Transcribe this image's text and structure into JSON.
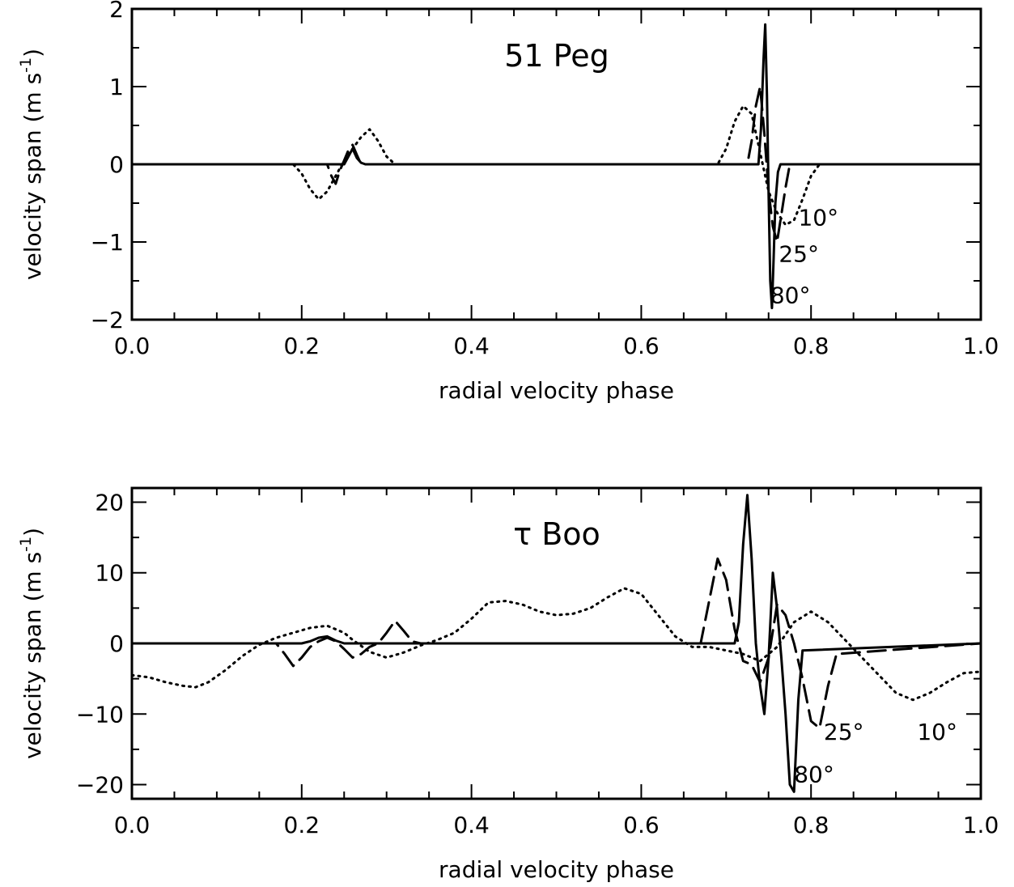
{
  "chart_data": [
    {
      "type": "line",
      "title": "51 Peg",
      "xlabel": "radial velocity phase",
      "ylabel_main": "velocity span (m s",
      "ylabel_sup": "-1",
      "ylabel_close": ")",
      "xlim": [
        0.0,
        1.0
      ],
      "ylim": [
        -2,
        2
      ],
      "xticks": [
        0.0,
        0.2,
        0.4,
        0.6,
        0.8,
        1.0
      ],
      "xtick_labels": [
        "0.0",
        "0.2",
        "0.4",
        "0.6",
        "0.8",
        "1.0"
      ],
      "yticks": [
        -2,
        -1,
        0,
        1,
        2
      ],
      "ytick_labels": [
        "−2",
        "−1",
        "0",
        "1",
        "2"
      ],
      "series": [
        {
          "style": "dotted",
          "x": [
            0.0,
            0.19,
            0.2,
            0.21,
            0.22,
            0.23,
            0.24,
            0.25,
            0.26,
            0.27,
            0.28,
            0.29,
            0.3,
            0.31,
            0.69,
            0.7,
            0.71,
            0.72,
            0.73,
            0.74,
            0.75,
            0.76,
            0.77,
            0.78,
            0.79,
            0.8,
            0.81,
            1.0
          ],
          "y": [
            0,
            0,
            -0.12,
            -0.32,
            -0.45,
            -0.35,
            -0.15,
            0.05,
            0.2,
            0.35,
            0.45,
            0.3,
            0.1,
            0,
            0,
            0.2,
            0.55,
            0.75,
            0.65,
            0.15,
            -0.35,
            -0.62,
            -0.78,
            -0.72,
            -0.45,
            -0.15,
            0,
            0
          ]
        },
        {
          "style": "dashed",
          "x": [
            0.0,
            0.23,
            0.235,
            0.24,
            0.245,
            0.25,
            0.255,
            0.26,
            0.265,
            0.27,
            0.725,
            0.73,
            0.735,
            0.74,
            0.745,
            0.75,
            0.755,
            0.76,
            0.765,
            0.77,
            0.775,
            1.0
          ],
          "y": [
            0,
            0,
            -0.15,
            -0.25,
            -0.08,
            0.05,
            0.18,
            0.25,
            0.12,
            0,
            0,
            0.3,
            0.75,
            1.0,
            0.4,
            -0.35,
            -0.8,
            -1.0,
            -0.65,
            -0.3,
            0,
            0
          ]
        },
        {
          "style": "solid",
          "x": [
            0.0,
            0.25,
            0.255,
            0.26,
            0.265,
            0.27,
            0.275,
            0.738,
            0.741,
            0.744,
            0.746,
            0.748,
            0.75,
            0.752,
            0.754,
            0.756,
            0.758,
            0.761,
            0.764,
            1.0
          ],
          "y": [
            0,
            0,
            0.1,
            0.2,
            0.08,
            0.02,
            0,
            0,
            0.45,
            1.35,
            1.8,
            0.9,
            -0.4,
            -1.5,
            -1.85,
            -1.2,
            -0.5,
            -0.1,
            0,
            0
          ]
        }
      ],
      "annotations": [
        {
          "text": "10°",
          "x": 0.785,
          "y": -0.68
        },
        {
          "text": "25°",
          "x": 0.762,
          "y": -1.15
        },
        {
          "text": "80°",
          "x": 0.752,
          "y": -1.68
        }
      ]
    },
    {
      "type": "line",
      "title": "τ Boo",
      "xlabel": "radial velocity phase",
      "ylabel_main": "velocity span (m s",
      "ylabel_sup": "-1",
      "ylabel_close": ")",
      "xlim": [
        0.0,
        1.0
      ],
      "ylim": [
        -22,
        22
      ],
      "xticks": [
        0.0,
        0.2,
        0.4,
        0.6,
        0.8,
        1.0
      ],
      "xtick_labels": [
        "0.0",
        "0.2",
        "0.4",
        "0.6",
        "0.8",
        "1.0"
      ],
      "yticks": [
        -20,
        -10,
        0,
        10,
        20
      ],
      "ytick_labels": [
        "−20",
        "−10",
        "0",
        "10",
        "20"
      ],
      "series": [
        {
          "style": "dotted",
          "x": [
            0.0,
            0.02,
            0.04,
            0.06,
            0.075,
            0.09,
            0.11,
            0.13,
            0.15,
            0.17,
            0.19,
            0.21,
            0.23,
            0.25,
            0.26,
            0.28,
            0.3,
            0.32,
            0.34,
            0.36,
            0.38,
            0.4,
            0.42,
            0.44,
            0.46,
            0.48,
            0.5,
            0.52,
            0.54,
            0.56,
            0.58,
            0.6,
            0.62,
            0.64,
            0.66,
            0.68,
            0.7,
            0.72,
            0.74,
            0.76,
            0.78,
            0.8,
            0.82,
            0.84,
            0.86,
            0.88,
            0.9,
            0.92,
            0.94,
            0.96,
            0.98,
            1.0
          ],
          "y": [
            -4.5,
            -4.8,
            -5.5,
            -6.0,
            -6.2,
            -5.5,
            -3.8,
            -1.8,
            -0.2,
            0.8,
            1.5,
            2.2,
            2.5,
            1.5,
            0.5,
            -1.2,
            -2.0,
            -1.3,
            -0.3,
            0.5,
            1.5,
            3.5,
            5.8,
            6.0,
            5.5,
            4.5,
            4.0,
            4.2,
            5.0,
            6.5,
            7.8,
            7.0,
            4.0,
            1.0,
            -0.5,
            -0.5,
            -1.0,
            -1.5,
            -2.5,
            -0.5,
            3.0,
            4.5,
            3.0,
            0.5,
            -2.0,
            -4.5,
            -7.0,
            -8.0,
            -7.0,
            -5.5,
            -4.2,
            -4.0
          ]
        },
        {
          "style": "dashed",
          "x": [
            0.0,
            0.17,
            0.18,
            0.19,
            0.2,
            0.21,
            0.22,
            0.23,
            0.24,
            0.25,
            0.26,
            0.27,
            0.28,
            0.29,
            0.3,
            0.31,
            0.32,
            0.33,
            0.34,
            0.67,
            0.68,
            0.69,
            0.7,
            0.71,
            0.72,
            0.73,
            0.74,
            0.75,
            0.76,
            0.77,
            0.78,
            0.79,
            0.8,
            0.81,
            0.82,
            0.83,
            1.0
          ],
          "y": [
            0,
            0,
            -1.5,
            -3.2,
            -2.0,
            -0.5,
            0.3,
            0.8,
            0.3,
            -0.8,
            -2.0,
            -1.5,
            -0.5,
            0.0,
            1.5,
            3.2,
            1.8,
            0.3,
            0,
            0,
            6.0,
            12.0,
            9.0,
            2.0,
            -2.5,
            -3.0,
            -5.5,
            -2.0,
            5.5,
            4.0,
            0.0,
            -5.0,
            -11.0,
            -12.0,
            -6.0,
            -1.5,
            0
          ]
        },
        {
          "style": "solid",
          "x": [
            0.0,
            0.2,
            0.21,
            0.22,
            0.23,
            0.24,
            0.25,
            0.71,
            0.715,
            0.72,
            0.725,
            0.73,
            0.735,
            0.74,
            0.745,
            0.75,
            0.755,
            0.76,
            0.765,
            0.77,
            0.775,
            0.78,
            0.785,
            0.79,
            1.0
          ],
          "y": [
            0,
            0,
            0.3,
            0.8,
            1.0,
            0.4,
            0,
            0,
            3.0,
            14.0,
            21.0,
            12.0,
            0.0,
            -6.0,
            -10.0,
            -2.0,
            10.0,
            5.0,
            -2.0,
            -10.0,
            -20.0,
            -21.0,
            -8.0,
            -1.0,
            0
          ]
        }
      ],
      "annotations": [
        {
          "text": "25°",
          "x": 0.815,
          "y": -12.5
        },
        {
          "text": "10°",
          "x": 0.925,
          "y": -12.5
        },
        {
          "text": "80°",
          "x": 0.78,
          "y": -18.5
        }
      ]
    }
  ]
}
